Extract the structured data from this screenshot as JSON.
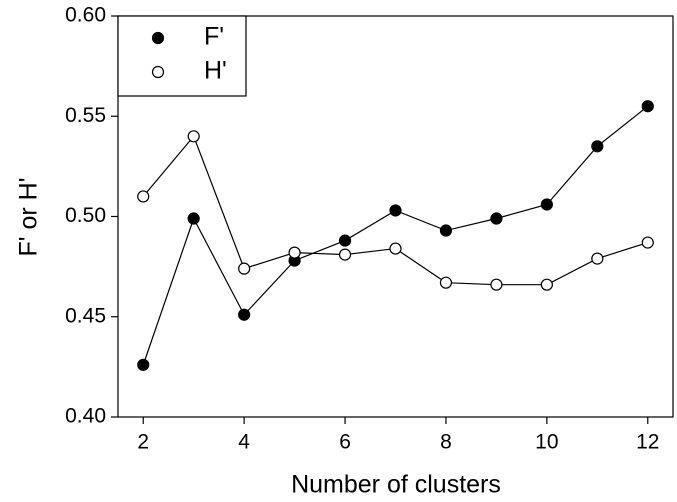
{
  "chart_data": {
    "type": "line",
    "x_label": "Number of clusters",
    "y_label": "F' or H'",
    "x": [
      2,
      3,
      4,
      5,
      6,
      7,
      8,
      9,
      10,
      11,
      12
    ],
    "series": [
      {
        "name": "F'",
        "color": "#000000",
        "marker_fill": "#000000",
        "values": [
          0.426,
          0.499,
          0.451,
          0.478,
          0.488,
          0.503,
          0.493,
          0.499,
          0.506,
          0.535,
          0.555
        ]
      },
      {
        "name": "H'",
        "color": "#000000",
        "marker_fill": "#ffffff",
        "values": [
          0.51,
          0.54,
          0.474,
          0.482,
          0.481,
          0.484,
          0.467,
          0.466,
          0.466,
          0.479,
          0.487
        ]
      }
    ],
    "xlim": [
      1.5,
      12.5
    ],
    "xticks": [
      2,
      4,
      6,
      8,
      10,
      12
    ],
    "ylim": [
      0.4,
      0.6
    ],
    "yticks": [
      {
        "value": 0.4,
        "label": "0.40"
      },
      {
        "value": 0.45,
        "label": "0.45"
      },
      {
        "value": 0.5,
        "label": "0.50"
      },
      {
        "value": 0.55,
        "label": "0.55"
      },
      {
        "value": 0.6,
        "label": "0.60"
      }
    ],
    "legend": "upper left"
  }
}
